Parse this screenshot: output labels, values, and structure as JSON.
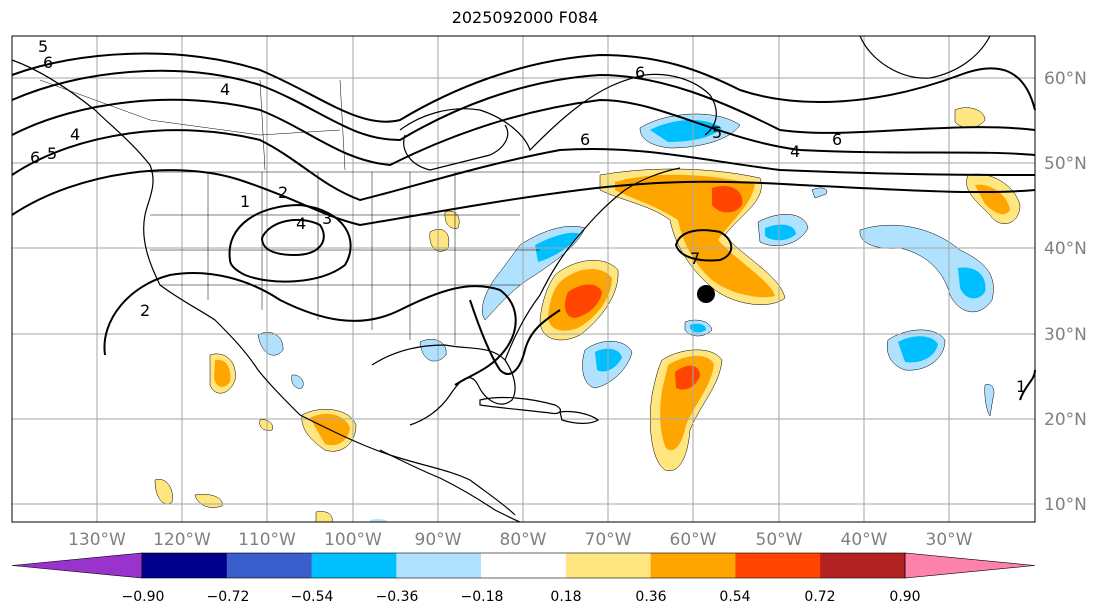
{
  "title": "2025092000 F084",
  "map": {
    "lat_labels": [
      "60°N",
      "50°N",
      "40°N",
      "30°N",
      "20°N",
      "10°N"
    ],
    "lon_labels": [
      "130°W",
      "120°W",
      "110°W",
      "100°W",
      "90°W",
      "80°W",
      "70°W",
      "60°W",
      "50°W",
      "40°W",
      "30°W"
    ],
    "contour_labels": [
      "5",
      "6",
      "6",
      "5",
      "4",
      "4",
      "6",
      "6",
      "5",
      "4",
      "6",
      "1",
      "2",
      "4",
      "3",
      "2",
      "1",
      "7"
    ],
    "marker": "storm-center-dot"
  },
  "colorbar": {
    "tick_labels": [
      "−0.90",
      "−0.72",
      "−0.54",
      "−0.36",
      "−0.18",
      "0.18",
      "0.36",
      "0.54",
      "0.72",
      "0.90"
    ],
    "colors": [
      "#9a32cd",
      "#00008b",
      "#3a5fcd",
      "#00bfff",
      "#b0e2ff",
      "#ffffff",
      "#ffe680",
      "#ffa500",
      "#ff4500",
      "#b22222",
      "#ff82ab"
    ]
  }
}
